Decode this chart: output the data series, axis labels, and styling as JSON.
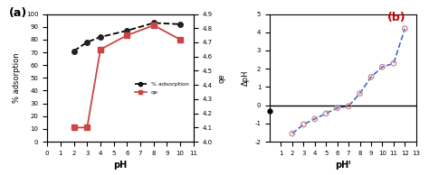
{
  "panel_a": {
    "label": "(a)",
    "label_color": "#000000",
    "ph_x": [
      2,
      3,
      4,
      6,
      8,
      10
    ],
    "pct_adsorption": [
      71,
      78,
      82,
      87,
      93,
      92
    ],
    "qe_right": [
      4.1,
      4.1,
      4.65,
      4.75,
      4.82,
      4.72
    ],
    "pct_color": "#000000",
    "qe_color": "#cc4444",
    "xlabel": "pH",
    "ylabel_left": "% adsorption",
    "ylabel_right": "qe",
    "ylim_left": [
      0,
      100
    ],
    "ylim_right": [
      4.0,
      4.9
    ],
    "yticks_left": [
      0,
      10,
      20,
      30,
      40,
      50,
      60,
      70,
      80,
      90,
      100
    ],
    "yticks_right": [
      4.0,
      4.1,
      4.2,
      4.3,
      4.4,
      4.5,
      4.6,
      4.7,
      4.8,
      4.9
    ],
    "xticks": [
      0,
      1,
      2,
      3,
      4,
      5,
      6,
      7,
      8,
      9,
      10,
      11
    ],
    "xlim": [
      0,
      11
    ],
    "legend_pct": "% adsorption",
    "legend_qe": "qe"
  },
  "panel_b": {
    "label": "(b)",
    "label_color": "#cc0000",
    "phi_x": [
      2,
      3,
      4,
      5,
      6,
      7,
      8,
      9,
      10,
      11,
      12
    ],
    "delta_ph": [
      -1.55,
      -1.05,
      -0.75,
      -0.45,
      -0.15,
      -0.05,
      0.65,
      1.55,
      2.1,
      2.3,
      4.2
    ],
    "line_color": "#4466cc",
    "marker_facecolor": "none",
    "marker_edgecolor": "#cc8888",
    "xlabel": "pHᴵ",
    "ylabel": "ΔpH",
    "ylim": [
      -2,
      5
    ],
    "yticks": [
      -2,
      -1,
      0,
      1,
      2,
      3,
      4,
      5
    ],
    "xticks": [
      1,
      2,
      3,
      4,
      5,
      6,
      7,
      8,
      9,
      10,
      11,
      12,
      13
    ],
    "xlim": [
      0,
      13
    ],
    "zero_dot_x": 0,
    "zero_dot_y": -0.3
  }
}
